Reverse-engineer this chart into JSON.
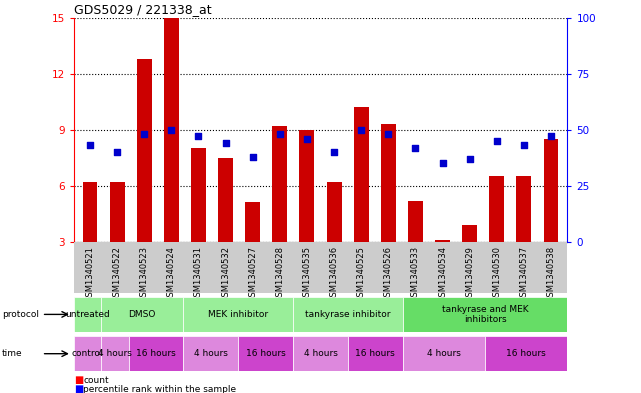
{
  "title": "GDS5029 / 221338_at",
  "samples": [
    "GSM1340521",
    "GSM1340522",
    "GSM1340523",
    "GSM1340524",
    "GSM1340531",
    "GSM1340532",
    "GSM1340527",
    "GSM1340528",
    "GSM1340535",
    "GSM1340536",
    "GSM1340525",
    "GSM1340526",
    "GSM1340533",
    "GSM1340534",
    "GSM1340529",
    "GSM1340530",
    "GSM1340537",
    "GSM1340538"
  ],
  "counts": [
    6.2,
    6.2,
    12.8,
    15.0,
    8.0,
    7.5,
    5.1,
    9.2,
    9.0,
    6.2,
    10.2,
    9.3,
    5.2,
    3.1,
    3.9,
    6.5,
    6.5,
    8.5
  ],
  "percentiles": [
    43,
    40,
    48,
    50,
    47,
    44,
    38,
    48,
    46,
    40,
    50,
    48,
    42,
    35,
    37,
    45,
    43,
    47
  ],
  "ylim_left": [
    3,
    15
  ],
  "ylim_right": [
    0,
    100
  ],
  "yticks_left": [
    3,
    6,
    9,
    12,
    15
  ],
  "yticks_right": [
    0,
    25,
    50,
    75,
    100
  ],
  "bar_color": "#cc0000",
  "dot_color": "#0000cc",
  "bar_bottom": 3.0,
  "protocols": [
    {
      "label": "untreated",
      "start": 0,
      "end": 1,
      "color": "#99ee99"
    },
    {
      "label": "DMSO",
      "start": 1,
      "end": 4,
      "color": "#99ee99"
    },
    {
      "label": "MEK inhibitor",
      "start": 4,
      "end": 8,
      "color": "#99ee99"
    },
    {
      "label": "tankyrase inhibitor",
      "start": 8,
      "end": 12,
      "color": "#99ee99"
    },
    {
      "label": "tankyrase and MEK\ninhibitors",
      "start": 12,
      "end": 18,
      "color": "#66dd66"
    }
  ],
  "times": [
    {
      "label": "control",
      "start": 0,
      "end": 1,
      "color": "#dd88dd"
    },
    {
      "label": "4 hours",
      "start": 1,
      "end": 2,
      "color": "#dd88dd"
    },
    {
      "label": "16 hours",
      "start": 2,
      "end": 4,
      "color": "#cc44cc"
    },
    {
      "label": "4 hours",
      "start": 4,
      "end": 6,
      "color": "#dd88dd"
    },
    {
      "label": "16 hours",
      "start": 6,
      "end": 8,
      "color": "#cc44cc"
    },
    {
      "label": "4 hours",
      "start": 8,
      "end": 10,
      "color": "#dd88dd"
    },
    {
      "label": "16 hours",
      "start": 10,
      "end": 12,
      "color": "#cc44cc"
    },
    {
      "label": "4 hours",
      "start": 12,
      "end": 15,
      "color": "#dd88dd"
    },
    {
      "label": "16 hours",
      "start": 15,
      "end": 18,
      "color": "#cc44cc"
    }
  ],
  "grid_color": "#000000",
  "bg_color": "#ffffff",
  "label_area_color": "#cccccc"
}
